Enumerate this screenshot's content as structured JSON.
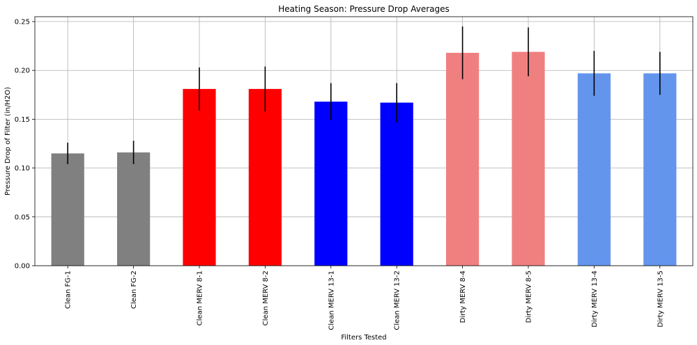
{
  "chart_data": {
    "type": "bar",
    "title": "Heating Season: Pressure Drop Averages",
    "xlabel": "Filters Tested",
    "ylabel": "Pressure Drop of Filter (in/H2O)",
    "ylim": [
      0,
      0.255
    ],
    "yticks": [
      0.0,
      0.05,
      0.1,
      0.15,
      0.2,
      0.25
    ],
    "grid": true,
    "categories": [
      "Clean FG-1",
      "Clean FG-2",
      "Clean MERV 8-1",
      "Clean MERV 8-2",
      "Clean MERV 13-1",
      "Clean MERV 13-2",
      "Dirty MERV 8-4",
      "Dirty MERV 8-5",
      "Dirty MERV 13-4",
      "Dirty MERV 13-5"
    ],
    "values": [
      0.115,
      0.116,
      0.181,
      0.181,
      0.168,
      0.167,
      0.218,
      0.219,
      0.197,
      0.197
    ],
    "errors": [
      0.011,
      0.012,
      0.022,
      0.023,
      0.019,
      0.02,
      0.027,
      0.025,
      0.023,
      0.022
    ],
    "colors": [
      "#808080",
      "#808080",
      "#ff0000",
      "#ff0000",
      "#0000ff",
      "#0000ff",
      "#f08080",
      "#f08080",
      "#6495ed",
      "#6495ed"
    ]
  }
}
